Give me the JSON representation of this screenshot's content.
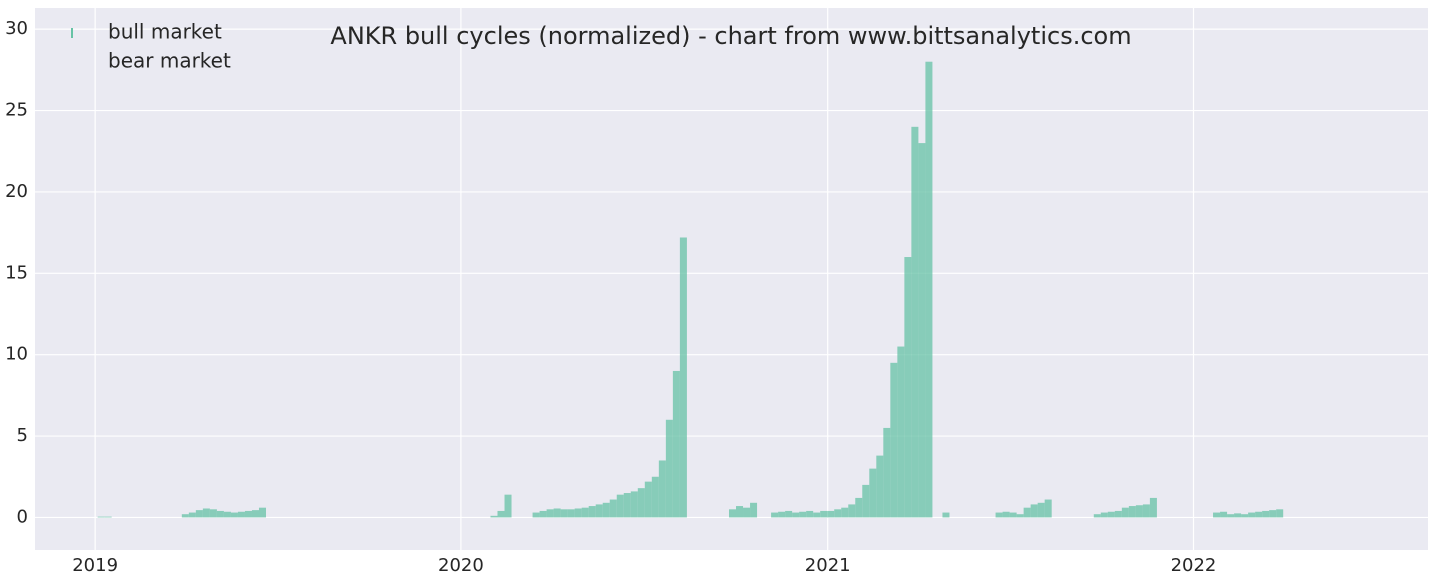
{
  "chart_data": {
    "type": "bar",
    "title": "ANKR bull cycles (normalized)  - chart from www.bittsanalytics.com",
    "xlim": [
      "2018-11-02",
      "2022-08-23"
    ],
    "ylim": [
      -2,
      31.3
    ],
    "xticks": [
      {
        "value": "2019-01-01",
        "label": "2019"
      },
      {
        "value": "2020-01-01",
        "label": "2020"
      },
      {
        "value": "2021-01-01",
        "label": "2021"
      },
      {
        "value": "2022-01-01",
        "label": "2022"
      }
    ],
    "yticks": [
      0,
      5,
      10,
      15,
      20,
      25,
      30
    ],
    "grid": true,
    "legend": "upper-left",
    "series": [
      {
        "name": "bull market",
        "color": "#66c2a5",
        "x": [
          "2019-01-07",
          "2019-01-14",
          "2019-04-01",
          "2019-04-08",
          "2019-04-15",
          "2019-04-22",
          "2019-04-29",
          "2019-05-06",
          "2019-05-13",
          "2019-05-20",
          "2019-05-27",
          "2019-06-03",
          "2019-06-10",
          "2019-06-17",
          "2020-02-03",
          "2020-02-10",
          "2020-02-17",
          "2020-03-16",
          "2020-03-23",
          "2020-03-30",
          "2020-04-06",
          "2020-04-13",
          "2020-04-20",
          "2020-04-27",
          "2020-05-04",
          "2020-05-11",
          "2020-05-18",
          "2020-05-25",
          "2020-06-01",
          "2020-06-08",
          "2020-06-15",
          "2020-06-22",
          "2020-06-29",
          "2020-07-06",
          "2020-07-13",
          "2020-07-20",
          "2020-07-27",
          "2020-08-03",
          "2020-08-10",
          "2020-09-28",
          "2020-10-05",
          "2020-10-12",
          "2020-10-19",
          "2020-11-09",
          "2020-11-16",
          "2020-11-23",
          "2020-11-30",
          "2020-12-07",
          "2020-12-14",
          "2020-12-21",
          "2020-12-28",
          "2021-01-04",
          "2021-01-11",
          "2021-01-18",
          "2021-01-25",
          "2021-02-01",
          "2021-02-08",
          "2021-02-15",
          "2021-02-22",
          "2021-03-01",
          "2021-03-08",
          "2021-03-15",
          "2021-03-22",
          "2021-03-29",
          "2021-04-05",
          "2021-04-12",
          "2021-04-29",
          "2021-06-21",
          "2021-06-28",
          "2021-07-05",
          "2021-07-12",
          "2021-07-19",
          "2021-07-26",
          "2021-08-02",
          "2021-08-09",
          "2021-09-27",
          "2021-10-04",
          "2021-10-11",
          "2021-10-18",
          "2021-10-25",
          "2021-11-01",
          "2021-11-08",
          "2021-11-15",
          "2021-11-22",
          "2022-01-24",
          "2022-01-31",
          "2022-02-07",
          "2022-02-14",
          "2022-02-21",
          "2022-02-28",
          "2022-03-07",
          "2022-03-14",
          "2022-03-21",
          "2022-03-28"
        ],
        "values": [
          0.05,
          0.05,
          0.2,
          0.3,
          0.45,
          0.55,
          0.5,
          0.4,
          0.35,
          0.3,
          0.35,
          0.4,
          0.45,
          0.6,
          0.1,
          0.4,
          1.4,
          0.3,
          0.4,
          0.5,
          0.55,
          0.5,
          0.5,
          0.55,
          0.6,
          0.7,
          0.8,
          0.9,
          1.1,
          1.4,
          1.5,
          1.6,
          1.8,
          2.2,
          2.5,
          3.5,
          6.0,
          9.0,
          17.2,
          0.5,
          0.7,
          0.6,
          0.9,
          0.3,
          0.35,
          0.4,
          0.3,
          0.35,
          0.4,
          0.3,
          0.4,
          0.4,
          0.5,
          0.6,
          0.8,
          1.2,
          2.0,
          3.0,
          3.8,
          5.5,
          9.5,
          10.5,
          16.0,
          24.0,
          23.0,
          28.0,
          0.3,
          0.3,
          0.35,
          0.3,
          0.2,
          0.6,
          0.8,
          0.9,
          1.1,
          0.2,
          0.3,
          0.35,
          0.4,
          0.6,
          0.7,
          0.75,
          0.8,
          1.2,
          0.3,
          0.35,
          0.2,
          0.25,
          0.2,
          0.3,
          0.35,
          0.4,
          0.45,
          0.5
        ]
      },
      {
        "name": "bear market",
        "color": "#fc8d62",
        "x": [],
        "values": []
      }
    ]
  }
}
